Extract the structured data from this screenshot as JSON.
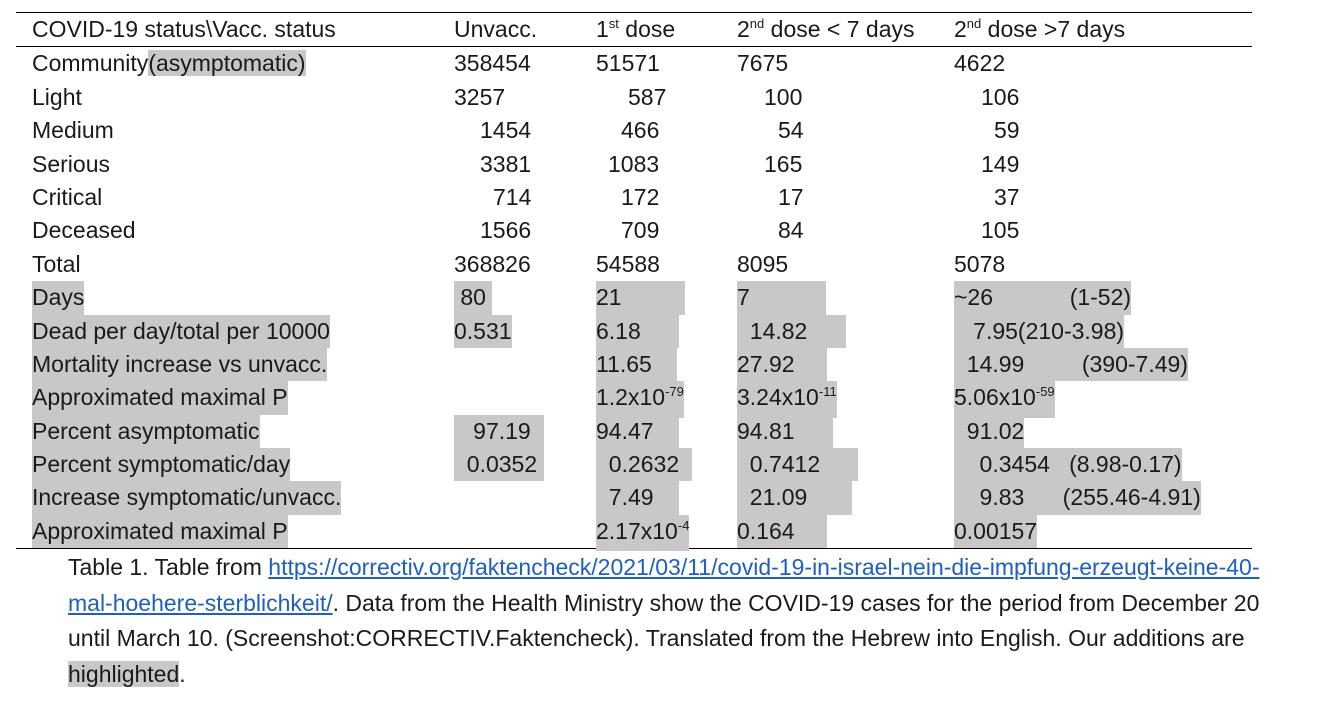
{
  "table": {
    "headers": {
      "status": "COVID-19 status\\Vacc. status",
      "unvacc": "Unvacc.",
      "dose1_num": "1",
      "dose1_sup": "st",
      "dose1_rest": " dose",
      "dose2a_num": "2",
      "dose2a_sup": "nd",
      "dose2a_rest": " dose < 7 days",
      "dose2b_num": "2",
      "dose2b_sup": "nd",
      "dose2b_rest": " dose >7 days"
    },
    "rows": [
      {
        "label": "Community",
        "label_hl": "(asymptomatic)",
        "c1": "358454",
        "c2": "51571",
        "c3": "7675",
        "c4": "4622"
      },
      {
        "label": "Light",
        "c1": "3257",
        "c2": "587",
        "c3": "100",
        "c4": "106"
      },
      {
        "label": "Medium",
        "c1": "1454",
        "c2": "466",
        "c3": "54",
        "c4": "59"
      },
      {
        "label": "Serious",
        "c1": "3381",
        "c2": "1083",
        "c3": "165",
        "c4": "149"
      },
      {
        "label": "Critical",
        "c1": "714",
        "c2": "172",
        "c3": "17",
        "c4": "37"
      },
      {
        "label": "Deceased",
        "c1": "1566",
        "c2": "709",
        "c3": "84",
        "c4": "105"
      },
      {
        "label": "Total",
        "c1": "368826",
        "c2": "54588",
        "c3": "8095",
        "c4": "5078"
      }
    ],
    "added_rows": [
      {
        "label": "Days",
        "c1": " 80 ",
        "c2": "21          ",
        "c3": "7            ",
        "c4": "~26            (1-52)"
      },
      {
        "label": "Dead per day/total per 10000",
        "c1": "0.531",
        "c2": "6.18      ",
        "c3": "  14.82      ",
        "c4": "   7.95(210-3.98)"
      },
      {
        "label": "Mortality increase vs unvacc.",
        "c1": "",
        "c2": "11.65    ",
        "c3": "27.92     ",
        "c4": "  14.99         (390-7.49)"
      },
      {
        "label": "Approximated maximal P",
        "c1": "",
        "c2_base": "1.2x10",
        "c2_exp": "-79",
        "c3_base": "3.24x10",
        "c3_exp": "-11",
        "c4_base": "5.06x10",
        "c4_exp": "-59"
      },
      {
        "label": "Percent asymptomatic",
        "c1": "   97.19  ",
        "c2": "94.47    ",
        "c3": "94.81      ",
        "c4": "  91.02"
      },
      {
        "label": "Percent symptomatic/day",
        "c1": "  0.0352 ",
        "c2": "  0.2632  ",
        "c3": "  0.7412      ",
        "c4": "    0.3454   (8.98-0.17)"
      },
      {
        "label": "Increase symptomatic/unvacc.",
        "c1": "",
        "c2": "  7.49    ",
        "c3": "  21.09       ",
        "c4": "    9.83      (255.46-4.91)"
      },
      {
        "label": "Approximated maximal P",
        "c1": "",
        "c2_base": "2.17x10",
        "c2_exp": "-4",
        "c3": "0.164     ",
        "c4": "0.00157"
      }
    ]
  },
  "caption": {
    "prefix": "Table 1. Table from ",
    "link": "https://correctiv.org/faktencheck/2021/03/11/covid-19-in-israel-nein-die-impfung-erzeugt-keine-40-mal-hoehere-sterblichkeit/",
    "middle": ". Data from the Health Ministry show the COVID-19 cases for the period from December 20 until March 10. (Screenshot:CORRECTIV.Faktencheck). Translated from the Hebrew into English. Our additions are ",
    "highlighted": "highlighted",
    "suffix": "."
  }
}
